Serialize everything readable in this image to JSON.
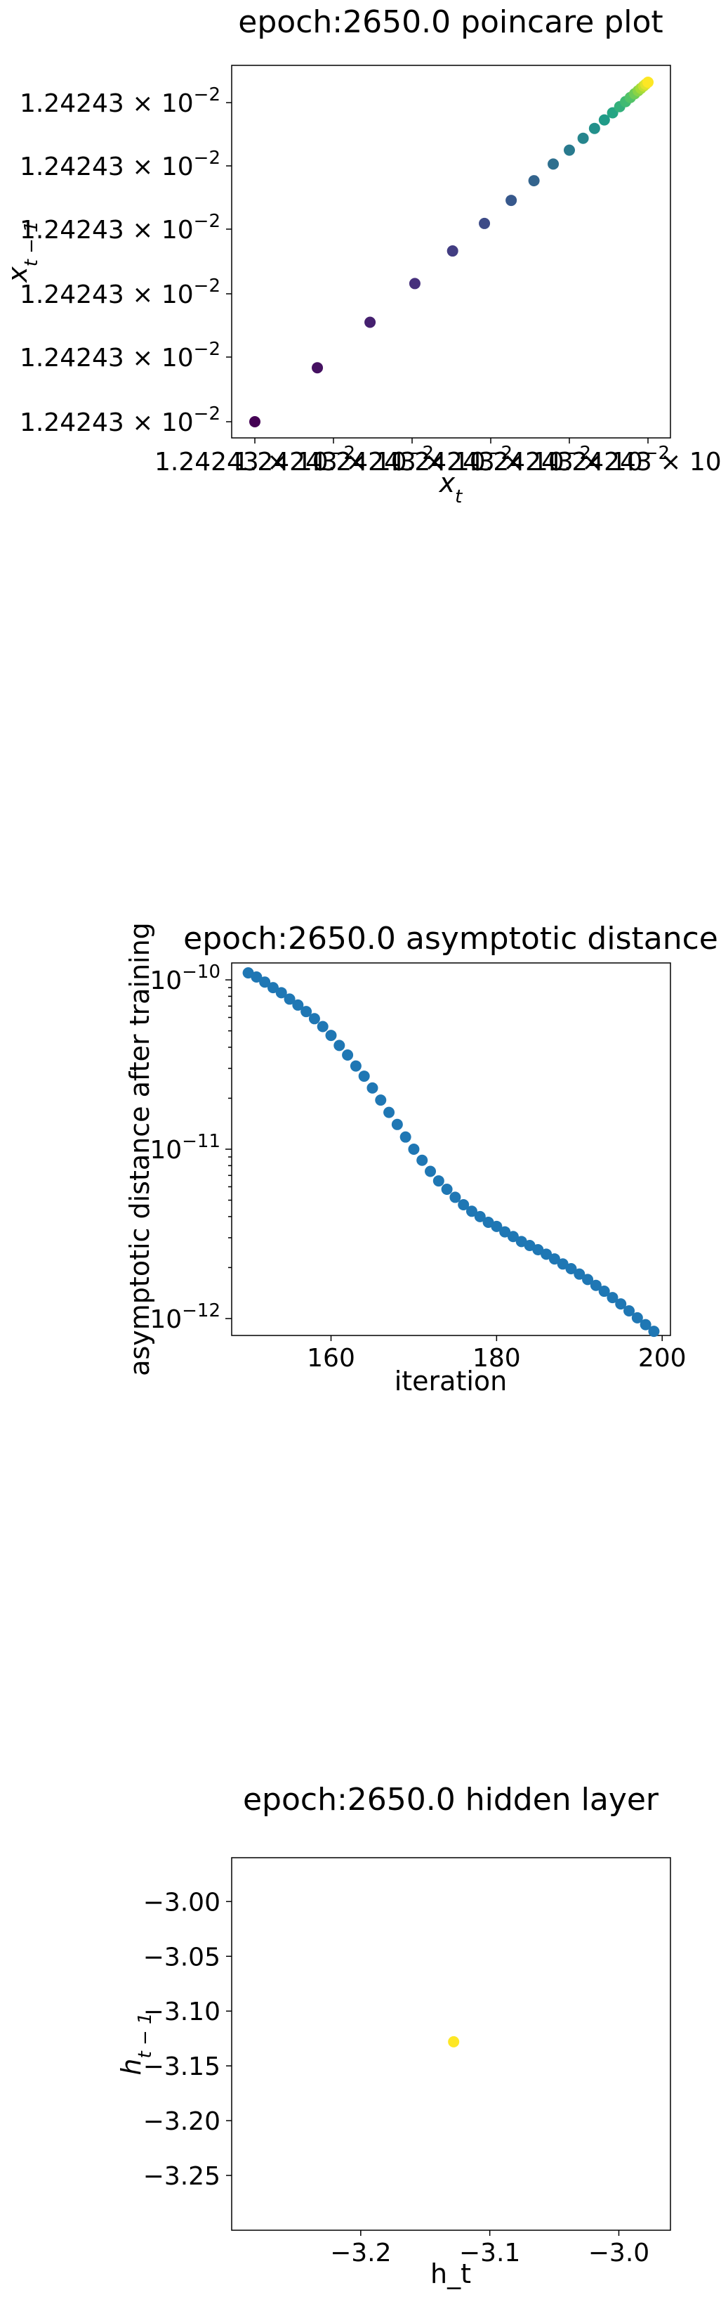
{
  "chart_data": [
    {
      "type": "scatter",
      "title": "epoch:2650.0 poincare plot",
      "xlabel": "x_t",
      "ylabel": "x_{t-1}",
      "tick_mantissa": "1.24243",
      "tick_exponent": "−2",
      "xticks": [
        "1.24243 × 10",
        "1.24243 × 10",
        "1.24243 × 10",
        "1.24243 × 10",
        "1.24243 × 10",
        "1.24243 × 10"
      ],
      "yticks": [
        "1.24243 × 10",
        "1.24243 × 10",
        "1.24243 × 10",
        "1.24243 × 10",
        "1.24243 × 10",
        "1.24243 × 10"
      ],
      "colormap": [
        "#440154",
        "#46327e",
        "#365c8d",
        "#277f8e",
        "#1fa187",
        "#4ac16d",
        "#a0da39",
        "#fde725"
      ],
      "points": [
        {
          "x": 0.0,
          "y": 0.0
        },
        {
          "x": 0.159,
          "y": 0.159
        },
        {
          "x": 0.293,
          "y": 0.293
        },
        {
          "x": 0.407,
          "y": 0.407
        },
        {
          "x": 0.503,
          "y": 0.503
        },
        {
          "x": 0.584,
          "y": 0.584
        },
        {
          "x": 0.652,
          "y": 0.652
        },
        {
          "x": 0.71,
          "y": 0.71
        },
        {
          "x": 0.759,
          "y": 0.759
        },
        {
          "x": 0.8,
          "y": 0.8
        },
        {
          "x": 0.835,
          "y": 0.835
        },
        {
          "x": 0.864,
          "y": 0.864
        },
        {
          "x": 0.889,
          "y": 0.889
        },
        {
          "x": 0.91,
          "y": 0.91
        },
        {
          "x": 0.928,
          "y": 0.928
        },
        {
          "x": 0.943,
          "y": 0.943
        },
        {
          "x": 0.955,
          "y": 0.955
        },
        {
          "x": 0.966,
          "y": 0.966
        },
        {
          "x": 0.975,
          "y": 0.975
        },
        {
          "x": 0.982,
          "y": 0.982
        },
        {
          "x": 0.989,
          "y": 0.989
        },
        {
          "x": 0.994,
          "y": 0.994
        },
        {
          "x": 1.0,
          "y": 1.0
        }
      ]
    },
    {
      "type": "scatter",
      "title": "epoch:2650.0 asymptotic distance",
      "xlabel": "iteration",
      "ylabel": "asymptotic distance after training",
      "yscale": "log",
      "xlim": [
        148,
        201
      ],
      "ylim_log10": [
        -12.1,
        -9.9
      ],
      "xticks": [
        160,
        180,
        200
      ],
      "yticks": [
        {
          "base": "10",
          "exp": "−10",
          "log": -10
        },
        {
          "base": "10",
          "exp": "−11",
          "log": -11
        },
        {
          "base": "10",
          "exp": "−12",
          "log": -12
        }
      ],
      "color": "#1f77b4",
      "x": [
        150,
        151,
        152,
        153,
        154,
        155,
        156,
        157,
        158,
        159,
        160,
        161,
        162,
        163,
        164,
        165,
        166,
        167,
        168,
        169,
        170,
        171,
        172,
        173,
        174,
        175,
        176,
        177,
        178,
        179,
        180,
        181,
        182,
        183,
        184,
        185,
        186,
        187,
        188,
        189,
        190,
        191,
        192,
        193,
        194,
        195,
        196,
        197,
        198,
        199
      ],
      "y": [
        1.1e-10,
        1.04e-10,
        9.7e-11,
        9e-11,
        8.4e-11,
        7.7e-11,
        7.1e-11,
        6.5e-11,
        5.9e-11,
        5.3e-11,
        4.7e-11,
        4.1e-11,
        3.6e-11,
        3.1e-11,
        2.7e-11,
        2.3e-11,
        1.95e-11,
        1.65e-11,
        1.4e-11,
        1.18e-11,
        1e-11,
        8.6e-12,
        7.4e-12,
        6.5e-12,
        5.8e-12,
        5.2e-12,
        4.7e-12,
        4.3e-12,
        4e-12,
        3.7e-12,
        3.5e-12,
        3.25e-12,
        3.05e-12,
        2.85e-12,
        2.7e-12,
        2.55e-12,
        2.4e-12,
        2.25e-12,
        2.1e-12,
        1.97e-12,
        1.83e-12,
        1.7e-12,
        1.57e-12,
        1.45e-12,
        1.33e-12,
        1.22e-12,
        1.11e-12,
        1.01e-12,
        9.2e-13,
        8.4e-13
      ]
    },
    {
      "type": "scatter",
      "title": "epoch:2650.0 hidden layer",
      "xlabel": "h_t",
      "ylabel": "h_{t-1}",
      "xlim": [
        -3.3,
        -2.96
      ],
      "ylim": [
        -3.3,
        -2.96
      ],
      "xticks": [
        {
          "value": -3.2,
          "label": "−3.2"
        },
        {
          "value": -3.1,
          "label": "−3.1"
        },
        {
          "value": -3.0,
          "label": "−3.0"
        }
      ],
      "yticks": [
        {
          "value": -3.0,
          "label": "−3.00"
        },
        {
          "value": -3.05,
          "label": "−3.05"
        },
        {
          "value": -3.1,
          "label": "−3.10"
        },
        {
          "value": -3.15,
          "label": "−3.15"
        },
        {
          "value": -3.2,
          "label": "−3.20"
        },
        {
          "value": -3.25,
          "label": "−3.25"
        }
      ],
      "color": "#fde725",
      "points": [
        {
          "x": -3.128,
          "y": -3.128
        }
      ]
    }
  ]
}
